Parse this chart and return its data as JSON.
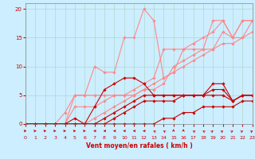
{
  "xlabel": "Vent moyen/en rafales ( km/h )",
  "background_color": "#cceeff",
  "grid_color": "#b0d8cc",
  "x": [
    0,
    1,
    2,
    3,
    4,
    5,
    6,
    7,
    8,
    9,
    10,
    11,
    12,
    13,
    14,
    15,
    16,
    17,
    18,
    19,
    20,
    21,
    22,
    23
  ],
  "ylim": [
    0,
    21
  ],
  "xlim": [
    0,
    23
  ],
  "yticks": [
    0,
    5,
    10,
    15,
    20
  ],
  "lines_light": [
    [
      0,
      0,
      0,
      0,
      2,
      5,
      5,
      10,
      9,
      9,
      15,
      15,
      20,
      18,
      8,
      9,
      13,
      13,
      13,
      18,
      18,
      15,
      18,
      18
    ],
    [
      0,
      0,
      0,
      0,
      0,
      5,
      5,
      5,
      5,
      5,
      5,
      6,
      7,
      8,
      13,
      13,
      13,
      14,
      15,
      16,
      18,
      15,
      18,
      18
    ],
    [
      0,
      0,
      0,
      0,
      0,
      3,
      3,
      3,
      4,
      5,
      5,
      5,
      6,
      6,
      7,
      10,
      11,
      12,
      13,
      13,
      16,
      15,
      15,
      18
    ],
    [
      0,
      0,
      0,
      0,
      0,
      0,
      0,
      1,
      2,
      3,
      4,
      5,
      6,
      7,
      8,
      9,
      10,
      11,
      12,
      13,
      14,
      14,
      15,
      16
    ]
  ],
  "lines_dark": [
    [
      0,
      0,
      0,
      0,
      0,
      1,
      0,
      3,
      6,
      7,
      8,
      8,
      7,
      5,
      5,
      5,
      5,
      5,
      5,
      7,
      7,
      4,
      5,
      5
    ],
    [
      0,
      0,
      0,
      0,
      0,
      0,
      0,
      0,
      1,
      2,
      3,
      4,
      5,
      5,
      5,
      5,
      5,
      5,
      5,
      6,
      6,
      4,
      5,
      5
    ],
    [
      0,
      0,
      0,
      0,
      0,
      0,
      0,
      0,
      0,
      1,
      2,
      3,
      4,
      4,
      4,
      4,
      5,
      5,
      5,
      5,
      5,
      4,
      5,
      5
    ],
    [
      0,
      0,
      0,
      0,
      0,
      0,
      0,
      0,
      0,
      0,
      0,
      0,
      0,
      0,
      1,
      1,
      2,
      2,
      3,
      3,
      3,
      3,
      4,
      4
    ]
  ],
  "light_color": "#ff8888",
  "dark_color": "#cc0000",
  "marker": "D",
  "marker_size": 1.8,
  "lw": 0.8,
  "arrow_angles": [
    0,
    0,
    0,
    0,
    0,
    0,
    0,
    180,
    180,
    180,
    180,
    180,
    180,
    135,
    135,
    90,
    90,
    135,
    135,
    45,
    45,
    45,
    45,
    45
  ]
}
